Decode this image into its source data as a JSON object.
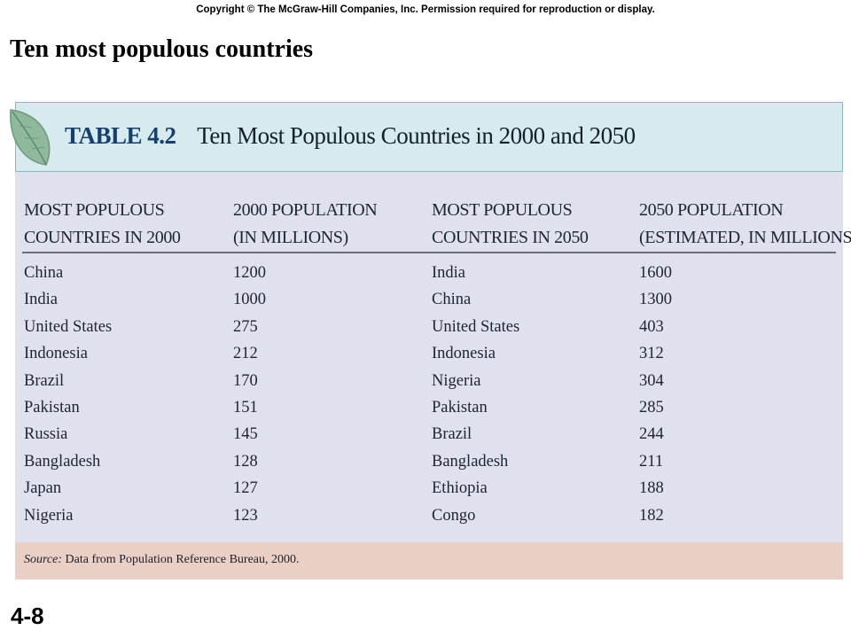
{
  "copyright": "Copyright © The McGraw-Hill Companies, Inc. Permission required for reproduction or display.",
  "slide_title": "Ten most populous countries",
  "table": {
    "label": "TABLE 4.2",
    "subtitle": "Ten Most Populous Countries in 2000 and 2050",
    "columns": [
      [
        "MOST POPULOUS",
        "COUNTRIES IN 2000"
      ],
      [
        "2000 POPULATION",
        "(IN MILLIONS)"
      ],
      [
        "MOST POPULOUS",
        "COUNTRIES IN 2050"
      ],
      [
        "2050 POPULATION",
        "(ESTIMATED, IN MILLIONS)"
      ]
    ],
    "rows": [
      [
        "China",
        "1200",
        "India",
        "1600"
      ],
      [
        "India",
        "1000",
        "China",
        "1300"
      ],
      [
        "United States",
        "275",
        "United States",
        "403"
      ],
      [
        "Indonesia",
        "212",
        "Indonesia",
        "312"
      ],
      [
        "Brazil",
        "170",
        "Nigeria",
        "304"
      ],
      [
        "Pakistan",
        "151",
        "Pakistan",
        "285"
      ],
      [
        "Russia",
        "145",
        "Brazil",
        "244"
      ],
      [
        "Bangladesh",
        "128",
        "Bangladesh",
        "211"
      ],
      [
        "Japan",
        "127",
        "Ethiopia",
        "188"
      ],
      [
        "Nigeria",
        "123",
        "Congo",
        "182"
      ]
    ],
    "source_label": "Source:",
    "source_text": "Data from Population Reference Bureau, 2000."
  },
  "slide_number": "4-8",
  "colors": {
    "header_bg": "#d7ebee",
    "body_bg": "#e0e1ee",
    "footer_bg": "#eacfc5",
    "label_color": "#15406e"
  },
  "icons": {
    "header_decoration": "leaf-icon"
  }
}
